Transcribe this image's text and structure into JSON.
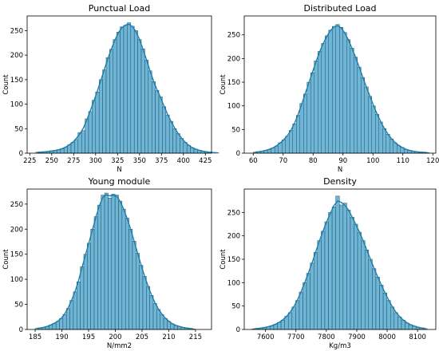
{
  "chart_data": [
    {
      "type": "bar",
      "subtype": "histogram-with-kde",
      "title": "Punctual Load",
      "xlabel": "N",
      "ylabel": "Count",
      "xlim": [
        222,
        432
      ],
      "ylim": [
        0,
        280
      ],
      "xticks": [
        225,
        250,
        275,
        300,
        325,
        350,
        375,
        400,
        425
      ],
      "yticks": [
        0,
        50,
        100,
        150,
        200,
        250
      ],
      "bin_start": 232,
      "bin_width": 4,
      "counts": [
        2,
        2,
        3,
        3,
        5,
        5,
        7,
        9,
        12,
        17,
        22,
        28,
        42,
        46,
        70,
        85,
        108,
        125,
        150,
        170,
        195,
        212,
        232,
        247,
        258,
        261,
        266,
        259,
        250,
        232,
        213,
        190,
        168,
        146,
        128,
        115,
        95,
        78,
        65,
        50,
        40,
        30,
        22,
        16,
        11,
        8,
        6,
        4,
        3,
        2,
        1,
        1
      ],
      "color": "#6fb6d6",
      "kde_color": "#1a7eaa"
    },
    {
      "type": "bar",
      "subtype": "histogram-with-kde",
      "title": "Distributed Load",
      "xlabel": "N",
      "ylabel": "Count",
      "xlim": [
        57,
        121
      ],
      "ylim": [
        0,
        290
      ],
      "xticks": [
        60,
        70,
        80,
        90,
        100,
        110,
        120
      ],
      "yticks": [
        0,
        50,
        100,
        150,
        200,
        250
      ],
      "bin_start": 60,
      "bin_width": 1.2,
      "counts": [
        2,
        3,
        4,
        6,
        8,
        11,
        15,
        22,
        28,
        36,
        48,
        62,
        80,
        105,
        125,
        150,
        170,
        195,
        215,
        232,
        248,
        260,
        268,
        272,
        266,
        255,
        240,
        222,
        203,
        182,
        160,
        140,
        120,
        100,
        82,
        66,
        52,
        40,
        30,
        22,
        16,
        12,
        8,
        6,
        4,
        3,
        2,
        2,
        1
      ],
      "color": "#6fb6d6",
      "kde_color": "#1a7eaa"
    },
    {
      "type": "bar",
      "subtype": "histogram-with-kde",
      "title": "Young module",
      "xlabel": "N/mm2",
      "ylabel": "Count",
      "xlim": [
        183.5,
        218
      ],
      "ylim": [
        0,
        280
      ],
      "xticks": [
        185,
        190,
        195,
        200,
        205,
        210,
        215
      ],
      "yticks": [
        0,
        50,
        100,
        150,
        200,
        250
      ],
      "bin_start": 185,
      "bin_width": 0.65,
      "counts": [
        2,
        3,
        4,
        6,
        9,
        12,
        16,
        22,
        30,
        42,
        58,
        75,
        95,
        125,
        150,
        172,
        200,
        225,
        248,
        268,
        272,
        262,
        270,
        268,
        256,
        240,
        222,
        200,
        176,
        152,
        128,
        106,
        86,
        68,
        52,
        40,
        30,
        22,
        16,
        11,
        8,
        6,
        4,
        3,
        2,
        1
      ],
      "color": "#6fb6d6",
      "kde_color": "#1a7eaa"
    },
    {
      "type": "bar",
      "subtype": "histogram-with-kde",
      "title": "Density",
      "xlabel": "Kg/m3",
      "ylabel": "Count",
      "xlim": [
        7530,
        8160
      ],
      "ylim": [
        0,
        300
      ],
      "xticks": [
        7600,
        7700,
        7800,
        7900,
        8000,
        8100
      ],
      "yticks": [
        0,
        50,
        100,
        150,
        200,
        250
      ],
      "bin_start": 7555,
      "bin_width": 12,
      "counts": [
        1,
        2,
        3,
        4,
        6,
        8,
        11,
        15,
        20,
        28,
        36,
        48,
        62,
        80,
        100,
        120,
        142,
        165,
        190,
        210,
        230,
        250,
        262,
        285,
        266,
        270,
        255,
        240,
        225,
        208,
        190,
        170,
        150,
        130,
        112,
        95,
        78,
        62,
        48,
        36,
        27,
        20,
        14,
        10,
        7,
        5,
        3,
        2
      ],
      "color": "#6fb6d6",
      "kde_color": "#1a7eaa"
    }
  ]
}
